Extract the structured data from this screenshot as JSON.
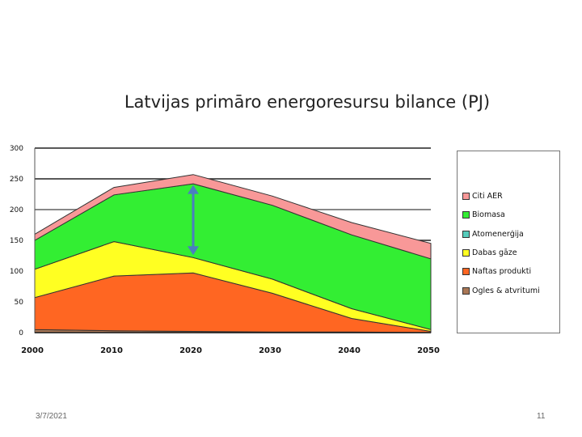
{
  "slide": {
    "title": "Latvijas primāro energoresursu bilance (PJ)",
    "date": "3/7/2021",
    "page_number": "11"
  },
  "colors": {
    "citi_aer": "#f89898",
    "biomasa": "#33ee33",
    "atomenergija": "#55ccbb",
    "dabasgaze": "#ffff22",
    "naftas_produkti": "#ff6622",
    "ogles": "#aa7755",
    "arrow": "#4a7fc0",
    "grid": "#222222",
    "grid_light": "#888888"
  },
  "chart_data": {
    "type": "area",
    "stacked": true,
    "x": [
      2000,
      2010,
      2020,
      2030,
      2040,
      2050
    ],
    "xticks": [
      "2000",
      "2010",
      "2020",
      "2030",
      "2040",
      "2050"
    ],
    "yticks": [
      "0",
      "50",
      "100",
      "150",
      "200",
      "250",
      "300"
    ],
    "ylim": [
      0,
      300
    ],
    "title": "Latvijas primāro energoresursu bilance (PJ)",
    "xlabel": "",
    "ylabel": "",
    "legend_position": "right",
    "series": [
      {
        "name": "Ogles & atvritumi",
        "color_key": "ogles",
        "values": [
          5,
          3,
          2,
          1,
          1,
          0
        ]
      },
      {
        "name": "Naftas produkti",
        "color_key": "naftas_produkti",
        "values": [
          52,
          89,
          95,
          63,
          22,
          2
        ]
      },
      {
        "name": "Dabas gāze",
        "color_key": "dabasgaze",
        "values": [
          46,
          56,
          25,
          23,
          16,
          3
        ]
      },
      {
        "name": "Atomenerģija",
        "color_key": "atomenergija",
        "values": [
          0,
          0,
          0,
          0,
          0,
          0
        ]
      },
      {
        "name": "Biomasa",
        "color_key": "biomasa",
        "values": [
          47,
          76,
          120,
          120,
          120,
          115
        ]
      },
      {
        "name": "Citi AER",
        "color_key": "citi_aer",
        "values": [
          10,
          12,
          15,
          15,
          20,
          25
        ]
      }
    ],
    "legend_order": [
      "Citi AER",
      "Biomasa",
      "Atomenerģija",
      "Dabas gāze",
      "Naftas produkti",
      "Ogles & atvritumi"
    ],
    "annotation": {
      "type": "double-arrow",
      "x": 2020,
      "y_from": 126,
      "y_to": 240
    }
  }
}
